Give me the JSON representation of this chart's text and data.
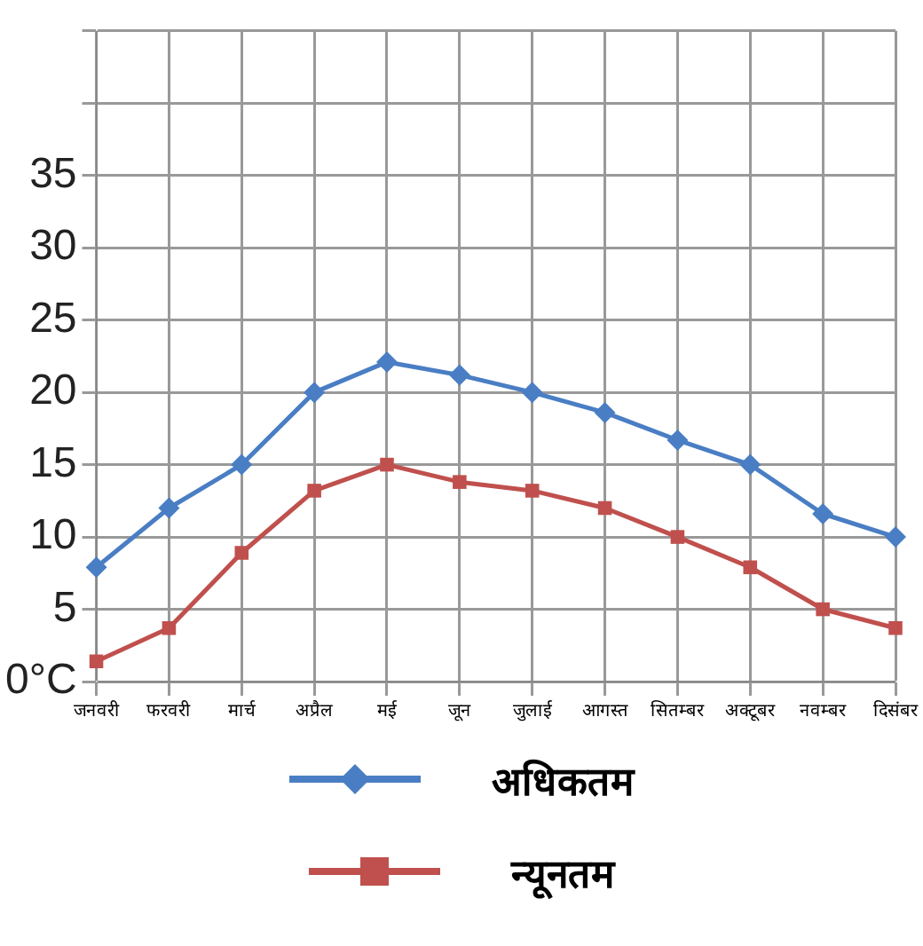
{
  "chart_data": {
    "type": "line",
    "categories": [
      "जनवरी",
      "फरवरी",
      "मार्च",
      "अप्रैल",
      "मई",
      "जून",
      "जुलाई",
      "आगस्त",
      "सितम्बर",
      "अक्टूबर",
      "नवम्बर",
      "दिसंबर"
    ],
    "series": [
      {
        "name": "अधिकतम",
        "color": "#4a7ec4",
        "marker": "diamond",
        "values": [
          7.9,
          12,
          15,
          20,
          22.1,
          21.2,
          20,
          18.6,
          16.7,
          15,
          11.6,
          10
        ]
      },
      {
        "name": "न्यूनतम",
        "color": "#c0504d",
        "marker": "square",
        "values": [
          1.4,
          3.7,
          8.9,
          13.2,
          15,
          13.8,
          13.2,
          12,
          10,
          7.9,
          5,
          3.7
        ]
      }
    ],
    "ylim": [
      0,
      45
    ],
    "yticks": [
      {
        "value": 0,
        "label": "0°C"
      },
      5,
      10,
      15,
      20,
      25,
      30,
      35,
      {
        "value": 40,
        "label": null
      },
      {
        "value": 45,
        "label": null
      }
    ],
    "grid": true,
    "legend": "bottom"
  }
}
